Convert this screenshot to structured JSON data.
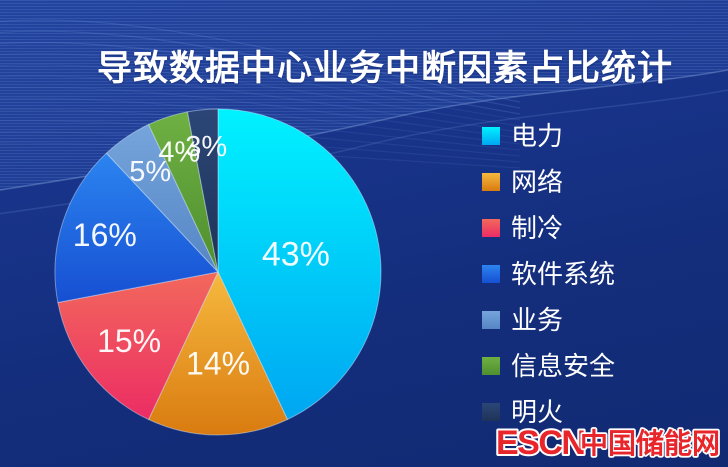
{
  "title": "导致数据中心业务中断因素占比统计",
  "chart_data": {
    "type": "pie",
    "title": "导致数据中心业务中断因素占比统计",
    "unit": "%",
    "start_angle_deg": 0,
    "direction": "clockwise",
    "legend_position": "right",
    "label_color": "#ffffff",
    "slices": [
      {
        "id": "power",
        "label": "电力",
        "value": 43,
        "pct_label": "43%",
        "color_top": "#00f2ff",
        "color_bottom": "#00a6f2",
        "label_r": 0.49
      },
      {
        "id": "network",
        "label": "网络",
        "value": 14,
        "pct_label": "14%",
        "color_top": "#f6b93f",
        "color_bottom": "#d97b10",
        "label_r": 0.56
      },
      {
        "id": "cooling",
        "label": "制冷",
        "value": 15,
        "pct_label": "15%",
        "color_top": "#f2685c",
        "color_bottom": "#ec2d64",
        "label_r": 0.69
      },
      {
        "id": "software",
        "label": "软件系统",
        "value": 16,
        "pct_label": "16%",
        "color_top": "#2c84f0",
        "color_bottom": "#164fd2",
        "label_r": 0.73
      },
      {
        "id": "business",
        "label": "业务",
        "value": 5,
        "pct_label": "5%",
        "color_top": "#76a5dc",
        "color_bottom": "#5585c4",
        "label_r": 0.74
      },
      {
        "id": "infosec",
        "label": "信息安全",
        "value": 4,
        "pct_label": "4%",
        "color_top": "#6fb043",
        "color_bottom": "#4f8f2f",
        "label_r": 0.77
      },
      {
        "id": "fire",
        "label": "明火",
        "value": 3,
        "pct_label": "3%",
        "color_top": "#2b4677",
        "color_bottom": "#1e3357",
        "label_r": 0.77
      }
    ]
  },
  "watermark": {
    "latin": "ESCN",
    "cjk": "中国储能网",
    "text_color": "#e8252a",
    "outline_color": "#ffffff"
  }
}
